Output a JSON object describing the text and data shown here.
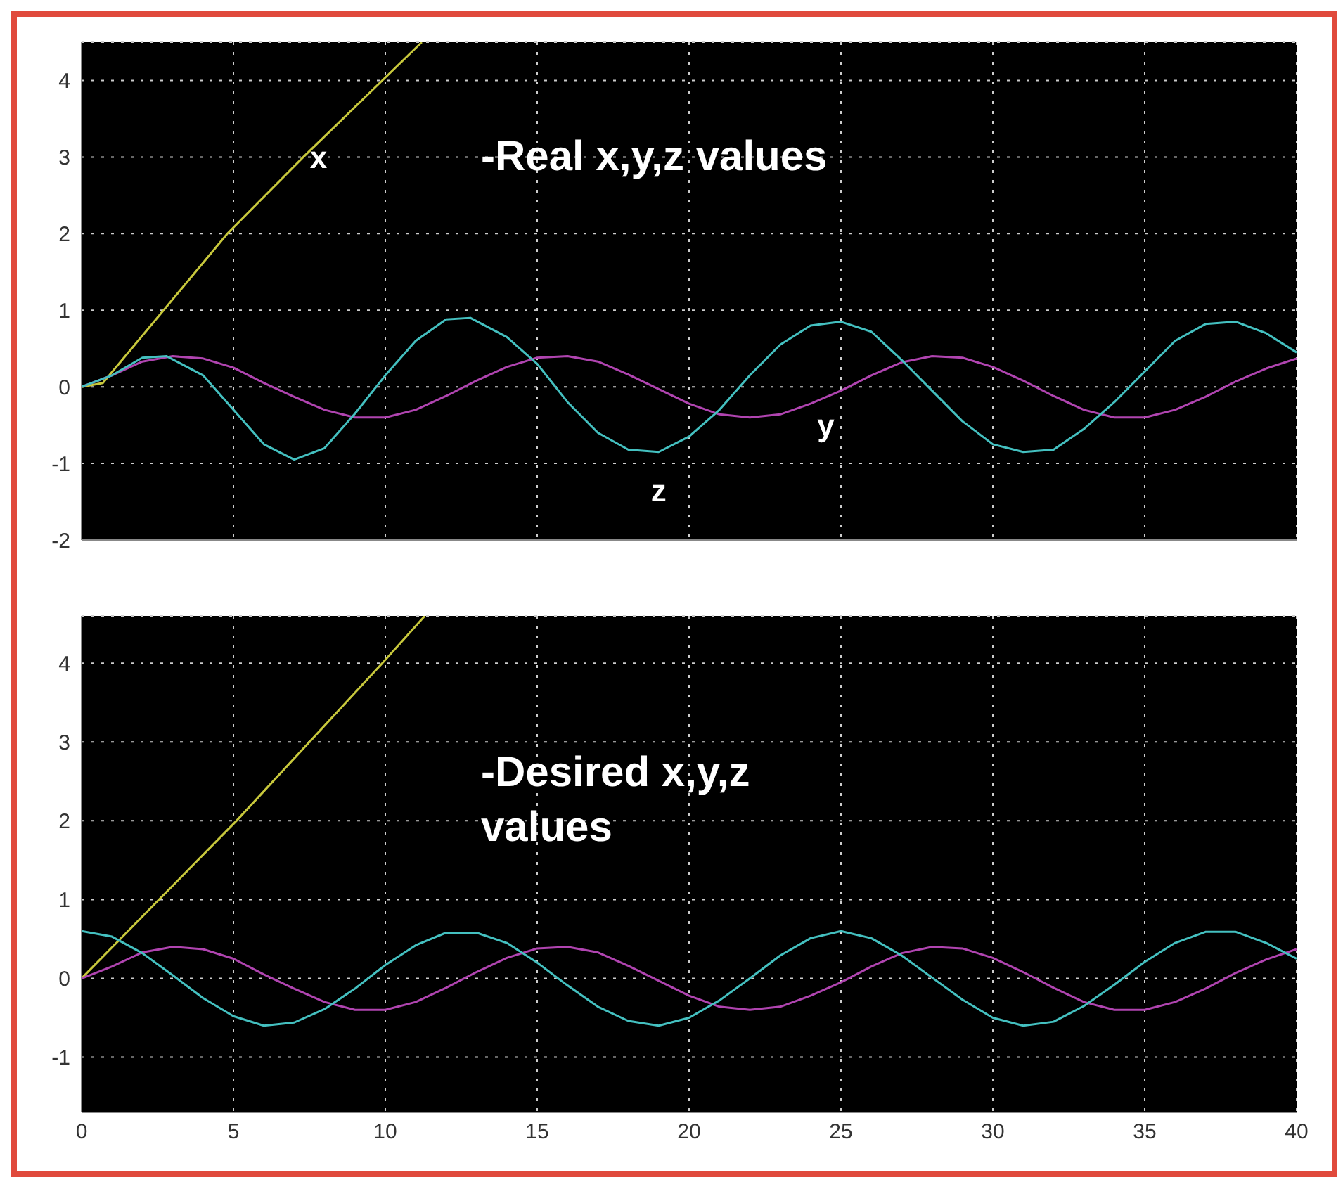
{
  "chart_data": [
    {
      "type": "line",
      "annotations": [
        "-Real x,y,z values"
      ],
      "xlim": [
        0,
        40
      ],
      "xticks": [
        0,
        5,
        10,
        15,
        20,
        25,
        30,
        35,
        40
      ],
      "ylim": [
        -2,
        4.5
      ],
      "yticks": [
        -2,
        -1,
        0,
        1,
        2,
        3,
        4
      ],
      "grid": true,
      "tick_labels": "y",
      "line_style": "solid",
      "series": [
        {
          "name": "x",
          "color": "#c8c83c",
          "x": [
            0,
            0.7,
            2.7,
            4.8,
            7.3,
            9.9,
            11.2
          ],
          "values": [
            0,
            0.05,
            1,
            2,
            3,
            4,
            4.5
          ]
        },
        {
          "name": "y",
          "color": "#b044b0",
          "x": [
            0,
            1,
            2,
            3,
            4,
            5,
            6,
            7,
            8,
            9,
            10,
            11,
            12,
            13,
            14,
            15,
            16,
            17,
            18,
            19,
            20,
            21,
            22,
            23,
            24,
            25,
            26,
            27,
            28,
            29,
            30,
            31,
            32,
            33,
            34,
            35,
            36,
            37,
            38,
            39,
            40
          ],
          "values": [
            0,
            0.15,
            0.33,
            0.4,
            0.37,
            0.25,
            0.05,
            -0.13,
            -0.3,
            -0.4,
            -0.4,
            -0.3,
            -0.12,
            0.08,
            0.26,
            0.38,
            0.4,
            0.33,
            0.16,
            -0.03,
            -0.22,
            -0.36,
            -0.4,
            -0.36,
            -0.22,
            -0.05,
            0.15,
            0.32,
            0.4,
            0.38,
            0.26,
            0.08,
            -0.12,
            -0.3,
            -0.4,
            -0.4,
            -0.3,
            -0.13,
            0.07,
            0.24,
            0.37
          ]
        },
        {
          "name": "z",
          "color": "#44c0c0",
          "x": [
            0,
            1,
            2,
            2.8,
            4,
            5,
            6,
            7,
            8,
            9,
            10,
            11,
            12,
            12.8,
            14,
            15,
            16,
            17,
            18,
            19,
            20,
            21,
            22,
            23,
            24,
            25,
            26,
            27,
            28,
            29,
            30,
            31,
            32,
            33,
            34,
            35,
            36,
            37,
            38,
            39,
            40
          ],
          "values": [
            0,
            0.15,
            0.38,
            0.4,
            0.15,
            -0.3,
            -0.75,
            -0.95,
            -0.8,
            -0.35,
            0.15,
            0.6,
            0.88,
            0.9,
            0.65,
            0.3,
            -0.2,
            -0.6,
            -0.82,
            -0.85,
            -0.65,
            -0.3,
            0.15,
            0.55,
            0.8,
            0.85,
            0.72,
            0.35,
            -0.05,
            -0.45,
            -0.75,
            -0.85,
            -0.82,
            -0.55,
            -0.2,
            0.2,
            0.6,
            0.82,
            0.85,
            0.7,
            0.45
          ]
        }
      ]
    },
    {
      "type": "line",
      "annotations": [
        "-Desired x,y,z values"
      ],
      "xlim": [
        0,
        40
      ],
      "xticks": [
        0,
        5,
        10,
        15,
        20,
        25,
        30,
        35,
        40
      ],
      "ylim": [
        -1.7,
        4.6
      ],
      "yticks": [
        -1,
        0,
        1,
        2,
        3,
        4
      ],
      "grid": true,
      "line_style": "solid",
      "series": [
        {
          "color": "#c8c83c",
          "x": [
            0,
            5.1,
            9.9,
            11.3
          ],
          "values": [
            0,
            2,
            4,
            4.6
          ]
        },
        {
          "color": "#b044b0",
          "x": [
            0,
            1,
            2,
            3,
            4,
            5,
            6,
            7,
            8,
            9,
            10,
            11,
            12,
            13,
            14,
            15,
            16,
            17,
            18,
            19,
            20,
            21,
            22,
            23,
            24,
            25,
            26,
            27,
            28,
            29,
            30,
            31,
            32,
            33,
            34,
            35,
            36,
            37,
            38,
            39,
            40
          ],
          "values": [
            0,
            0.15,
            0.33,
            0.4,
            0.37,
            0.25,
            0.05,
            -0.13,
            -0.3,
            -0.4,
            -0.4,
            -0.3,
            -0.12,
            0.08,
            0.26,
            0.38,
            0.4,
            0.33,
            0.16,
            -0.03,
            -0.22,
            -0.36,
            -0.4,
            -0.36,
            -0.22,
            -0.05,
            0.15,
            0.32,
            0.4,
            0.38,
            0.26,
            0.08,
            -0.12,
            -0.3,
            -0.4,
            -0.4,
            -0.3,
            -0.13,
            0.07,
            0.24,
            0.37
          ]
        },
        {
          "color": "#44c0c0",
          "x": [
            0,
            1,
            2,
            3,
            4,
            5,
            6,
            7,
            8,
            9,
            10,
            11,
            12,
            13,
            14,
            15,
            16,
            17,
            18,
            19,
            20,
            21,
            22,
            23,
            24,
            25,
            26,
            27,
            28,
            29,
            30,
            31,
            32,
            33,
            34,
            35,
            36,
            37,
            38,
            39,
            40
          ],
          "values": [
            0.6,
            0.53,
            0.32,
            0.04,
            -0.25,
            -0.48,
            -0.6,
            -0.56,
            -0.39,
            -0.13,
            0.17,
            0.42,
            0.58,
            0.58,
            0.45,
            0.2,
            -0.09,
            -0.36,
            -0.54,
            -0.6,
            -0.5,
            -0.28,
            0,
            0.29,
            0.51,
            0.6,
            0.51,
            0.29,
            0.01,
            -0.27,
            -0.5,
            -0.6,
            -0.55,
            -0.35,
            -0.08,
            0.21,
            0.45,
            0.59,
            0.59,
            0.45,
            0.25
          ]
        }
      ]
    }
  ]
}
